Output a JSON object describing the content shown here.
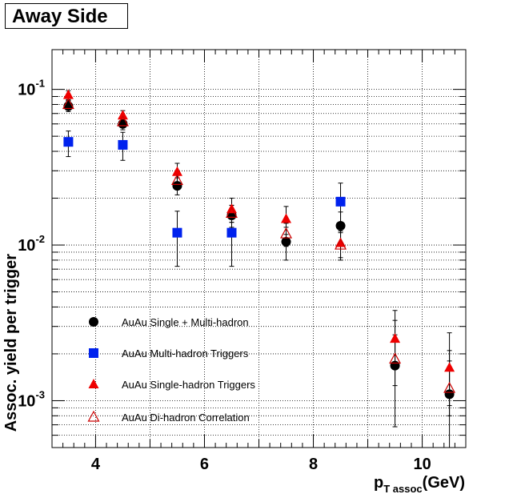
{
  "chart_data": {
    "type": "scatter",
    "title": "Away Side",
    "xlabel_main": "p",
    "xlabel_sub": "T assoc",
    "xlabel_unit": "(GeV)",
    "ylabel": "Assoc. yield per trigger",
    "xlim": [
      3.2,
      10.8
    ],
    "ylim": [
      0.0005,
      0.18
    ],
    "y_scale": "log",
    "x_ticks": [
      4,
      6,
      8,
      10
    ],
    "x_tick_labels": [
      "4",
      "6",
      "8",
      "10"
    ],
    "y_tick_labels": [
      {
        "value": 0.1,
        "base": "10",
        "exp": "-1"
      },
      {
        "value": 0.01,
        "base": "10",
        "exp": "-2"
      },
      {
        "value": 0.001,
        "base": "10",
        "exp": "-3"
      }
    ],
    "grid": true,
    "legend_position": "bottom-left",
    "series": [
      {
        "name": "AuAu Single + Multi-hadron",
        "marker": "circle-filled",
        "color": "#000000",
        "x": [
          3.5,
          4.5,
          5.5,
          6.5,
          7.5,
          8.5,
          9.5,
          10.5
        ],
        "y": [
          0.078,
          0.06,
          0.024,
          0.0155,
          0.0105,
          0.0133,
          0.00168,
          0.0011
        ],
        "err_up": [
          0.006,
          0.005,
          0.003,
          0.0025,
          0.0025,
          0.003,
          0.0016,
          0.001
        ],
        "err_down": [
          0.006,
          0.005,
          0.003,
          0.0025,
          0.0025,
          0.003,
          0.001,
          0.0006
        ]
      },
      {
        "name": "AuAu Multi-hadron Triggers",
        "marker": "square-filled",
        "color": "#0022ee",
        "x": [
          3.5,
          4.5,
          5.5,
          6.5,
          8.5
        ],
        "y": [
          0.046,
          0.044,
          0.012,
          0.012,
          0.019
        ],
        "err_up": [
          0.008,
          0.009,
          0.0045,
          0.0045,
          0.006
        ],
        "err_down": [
          0.009,
          0.009,
          0.0047,
          0.0047,
          0.006
        ]
      },
      {
        "name": "AuAu Single-hadron Triggers",
        "marker": "triangle-filled",
        "color": "#ee0000",
        "x": [
          3.5,
          4.5,
          5.5,
          6.5,
          7.5,
          8.5,
          9.5,
          10.5
        ],
        "y": [
          0.092,
          0.068,
          0.0295,
          0.017,
          0.0147,
          0.0103,
          0.0025,
          0.00163
        ],
        "err_up": [
          0.006,
          0.005,
          0.004,
          0.003,
          0.003,
          0.002,
          0.0013,
          0.0011
        ],
        "err_down": [
          0.006,
          0.005,
          0.004,
          0.003,
          0.003,
          0.002,
          0.0009,
          0.0007
        ]
      },
      {
        "name": "AuAu Di-hadron Correlation",
        "marker": "triangle-open",
        "color": "#cc0000",
        "x": [
          3.5,
          4.5,
          5.5,
          6.5,
          7.5,
          8.5,
          9.5,
          10.5
        ],
        "y": [
          0.08,
          0.062,
          0.026,
          0.016,
          0.0118,
          0.01,
          0.00185,
          0.0012
        ],
        "err_up": [
          0.005,
          0.004,
          0.003,
          0.002,
          0.002,
          0.002,
          0.0008,
          0.0006
        ],
        "err_down": [
          0.005,
          0.004,
          0.003,
          0.002,
          0.002,
          0.002,
          0.0006,
          0.0004
        ]
      }
    ]
  }
}
